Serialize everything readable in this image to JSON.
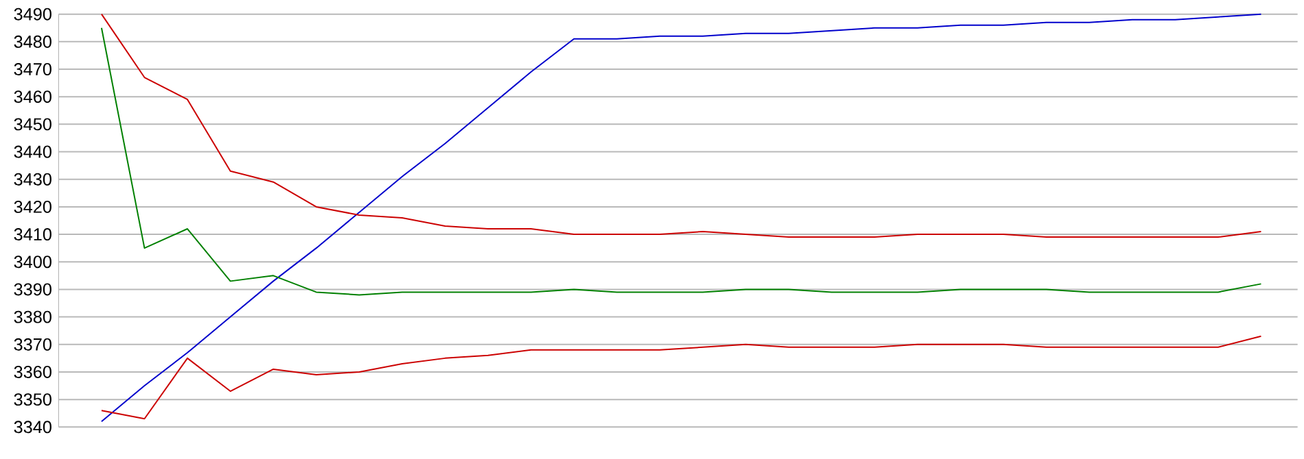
{
  "chart_data": {
    "type": "line",
    "categories": [
      null,
      null,
      null,
      null,
      null,
      null,
      null,
      null,
      null,
      null,
      null,
      null,
      null,
      null,
      null,
      null,
      null,
      null,
      null,
      null,
      null,
      null,
      null,
      null,
      null,
      null,
      null,
      null
    ],
    "series": [
      {
        "color": "#0000cc",
        "values": [
          3342,
          3355,
          3367,
          3380,
          3393,
          3405,
          3418,
          3431,
          3443,
          3456,
          3469,
          3481,
          3481,
          3482,
          3482,
          3483,
          3483,
          3484,
          3485,
          3485,
          3486,
          3486,
          3487,
          3487,
          3488,
          3488,
          3489,
          3490
        ]
      },
      {
        "color": "#cc0000",
        "values": [
          3490,
          3467,
          3459,
          3433,
          3429,
          3420,
          3417,
          3416,
          3413,
          3412,
          3412,
          3410,
          3410,
          3410,
          3411,
          3410,
          3409,
          3409,
          3409,
          3410,
          3410,
          3410,
          3409,
          3409,
          3409,
          3409,
          3409,
          3411
        ]
      },
      {
        "color": "#008000",
        "values": [
          3485,
          3405,
          3412,
          3393,
          3395,
          3389,
          3388,
          3389,
          3389,
          3389,
          3389,
          3390,
          3389,
          3389,
          3389,
          3390,
          3390,
          3389,
          3389,
          3389,
          3390,
          3390,
          3390,
          3389,
          3389,
          3389,
          3389,
          3392
        ]
      },
      {
        "color": "#cc0000",
        "values": [
          3346,
          3343,
          3365,
          3353,
          3361,
          3359,
          3360,
          3363,
          3365,
          3366,
          3368,
          3368,
          3368,
          3368,
          3369,
          3370,
          3369,
          3369,
          3369,
          3370,
          3370,
          3370,
          3369,
          3369,
          3369,
          3369,
          3369,
          3373
        ]
      }
    ],
    "ylim": [
      3340,
      3490
    ],
    "yticks": [
      3340,
      3350,
      3360,
      3370,
      3380,
      3390,
      3400,
      3410,
      3420,
      3430,
      3440,
      3450,
      3460,
      3470,
      3480,
      3490
    ],
    "grid": "y",
    "tick_labels": "y",
    "marker": "none",
    "line_style": "solid"
  }
}
